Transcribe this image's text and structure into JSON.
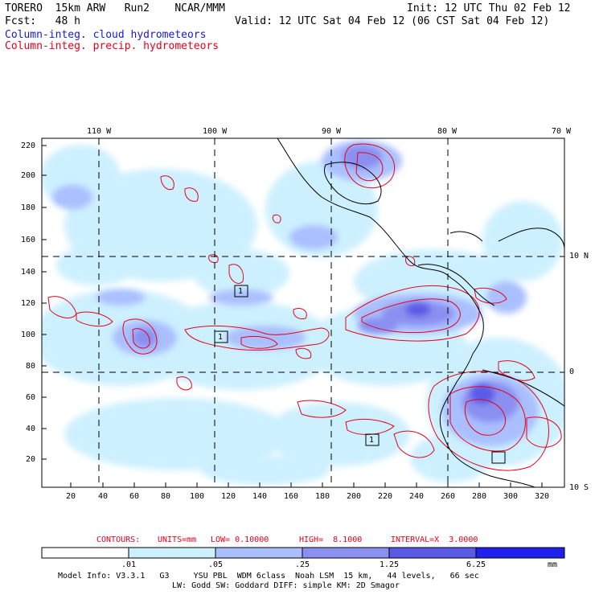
{
  "header": {
    "model": "TORERO  15km ARW   Run2    NCAR/MMM",
    "init": "Init: 12 UTC Thu 02 Feb 12",
    "fcst": "Fcst:   48 h",
    "valid": "Valid: 12 UTC Sat 04 Feb 12 (06 CST Sat 04 Feb 12)",
    "field_cloud": "Column-integ. cloud hydrometeors",
    "field_precip": "Column-integ. precip. hydrometeors"
  },
  "map": {
    "lon_labels": [
      "110 W",
      "100 W",
      "90 W",
      "80 W",
      "70 W"
    ],
    "lat_labels": [
      "10 N",
      "0",
      "10 S"
    ],
    "y_ticks": [
      "220",
      "200",
      "180",
      "160",
      "140",
      "120",
      "100",
      "80",
      "60",
      "40",
      "20"
    ],
    "x_ticks": [
      "20",
      "40",
      "60",
      "80",
      "100",
      "120",
      "140",
      "160",
      "180",
      "200",
      "220",
      "240",
      "260",
      "280",
      "300",
      "320"
    ],
    "box_labels": [
      "1",
      "1",
      "1"
    ]
  },
  "contours_line": {
    "label": "CONTOURS:",
    "units": "UNITS=mm",
    "low": "LOW= 0.10000",
    "high": "HIGH=  8.1000",
    "interval": "INTERVAL=X  3.0000"
  },
  "colorbar": {
    "ticks": [
      ".01",
      ".05",
      ".25",
      "1.25",
      "6.25"
    ],
    "unit": "mm",
    "colors": [
      "#ffffff",
      "#cdf0ff",
      "#aabfff",
      "#8a8ff0",
      "#5a5ae6",
      "#2020ee"
    ]
  },
  "footer": {
    "line1": "Model Info: V3.3.1   G3     YSU PBL  WDM 6class  Noah LSM  15 km,   44 levels,   66 sec",
    "line2": "LW: Godd SW: Goddard DIFF: simple KM: 2D Smagor"
  }
}
